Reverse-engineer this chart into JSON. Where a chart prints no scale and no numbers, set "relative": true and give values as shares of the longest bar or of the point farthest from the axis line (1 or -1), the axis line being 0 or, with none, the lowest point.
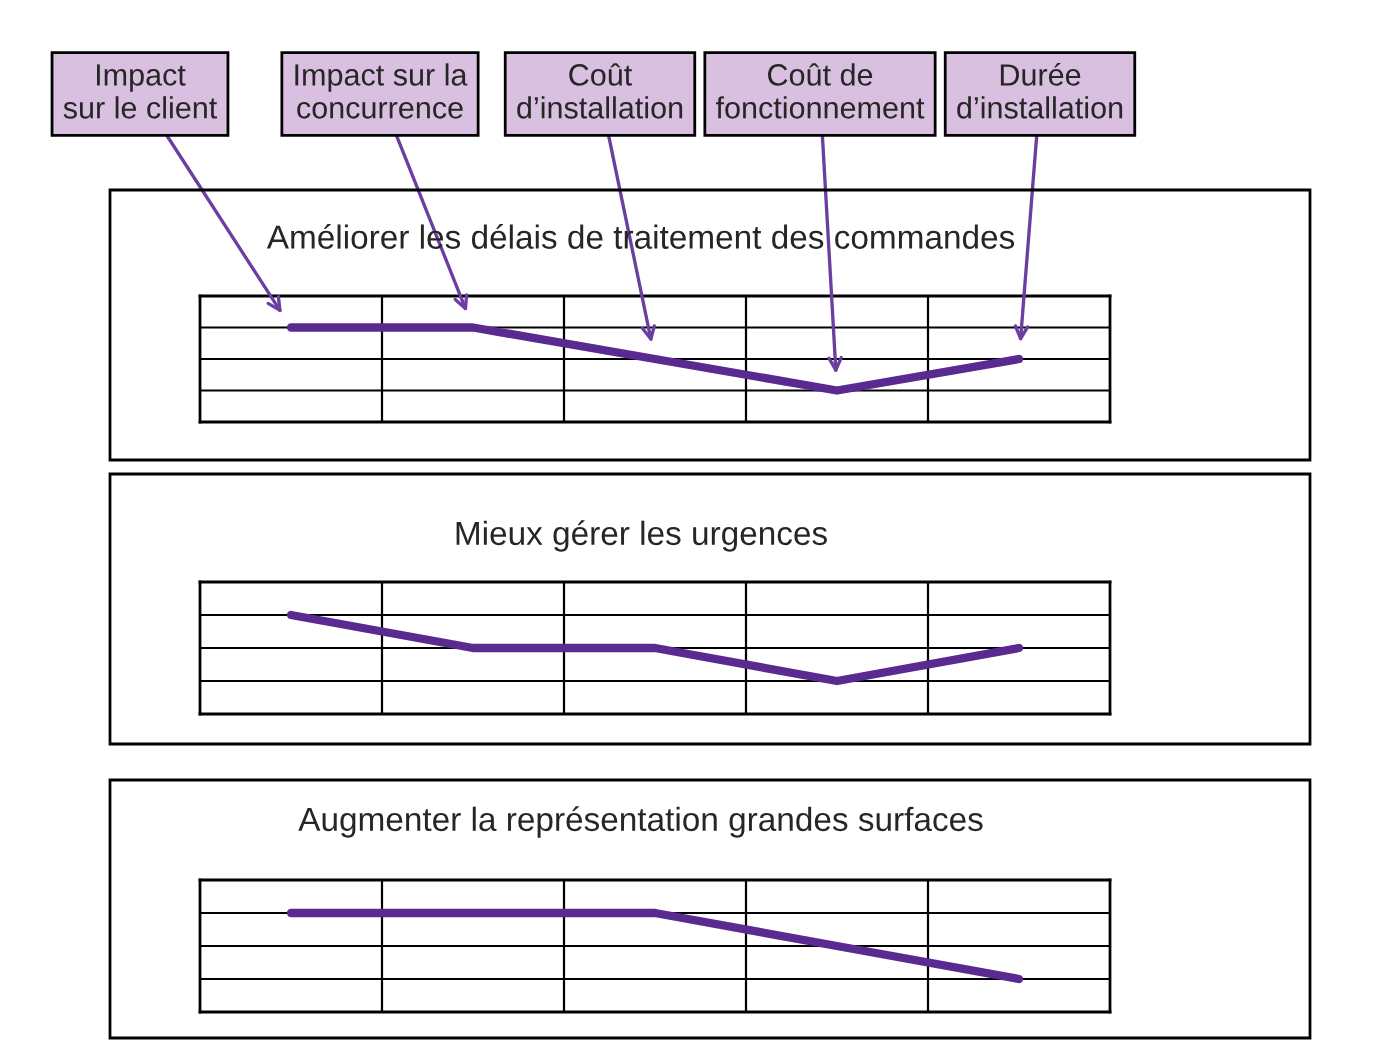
{
  "chart_data": [
    {
      "type": "line",
      "title": "Améliorer les délais de traitement des commandes",
      "categories": [
        null,
        null,
        null,
        null,
        null
      ],
      "annotations": [
        "Impact\nsur le client",
        "Impact sur la\nconcurrence",
        "Coût\nd’installation",
        "Coût de\nfonctionnement",
        "Durée\nd’installation"
      ],
      "relative": true,
      "grid": true,
      "marker": "none",
      "values": [
        1,
        1,
        0.5,
        0,
        0.5
      ],
      "color": "#5b2a91"
    },
    {
      "type": "line",
      "title": "Mieux gérer les urgences",
      "categories": [
        null,
        null,
        null,
        null,
        null
      ],
      "relative": true,
      "grid": true,
      "marker": "none",
      "values": [
        1,
        0.5,
        0.5,
        0,
        0.5
      ],
      "color": "#5b2a91"
    },
    {
      "type": "line",
      "title": "Augmenter la représentation grandes surfaces",
      "categories": [
        null,
        null,
        null,
        null,
        null
      ],
      "relative": true,
      "grid": true,
      "marker": "none",
      "values": [
        1,
        1,
        1,
        0.5,
        0
      ],
      "color": "#5b2a91"
    }
  ]
}
